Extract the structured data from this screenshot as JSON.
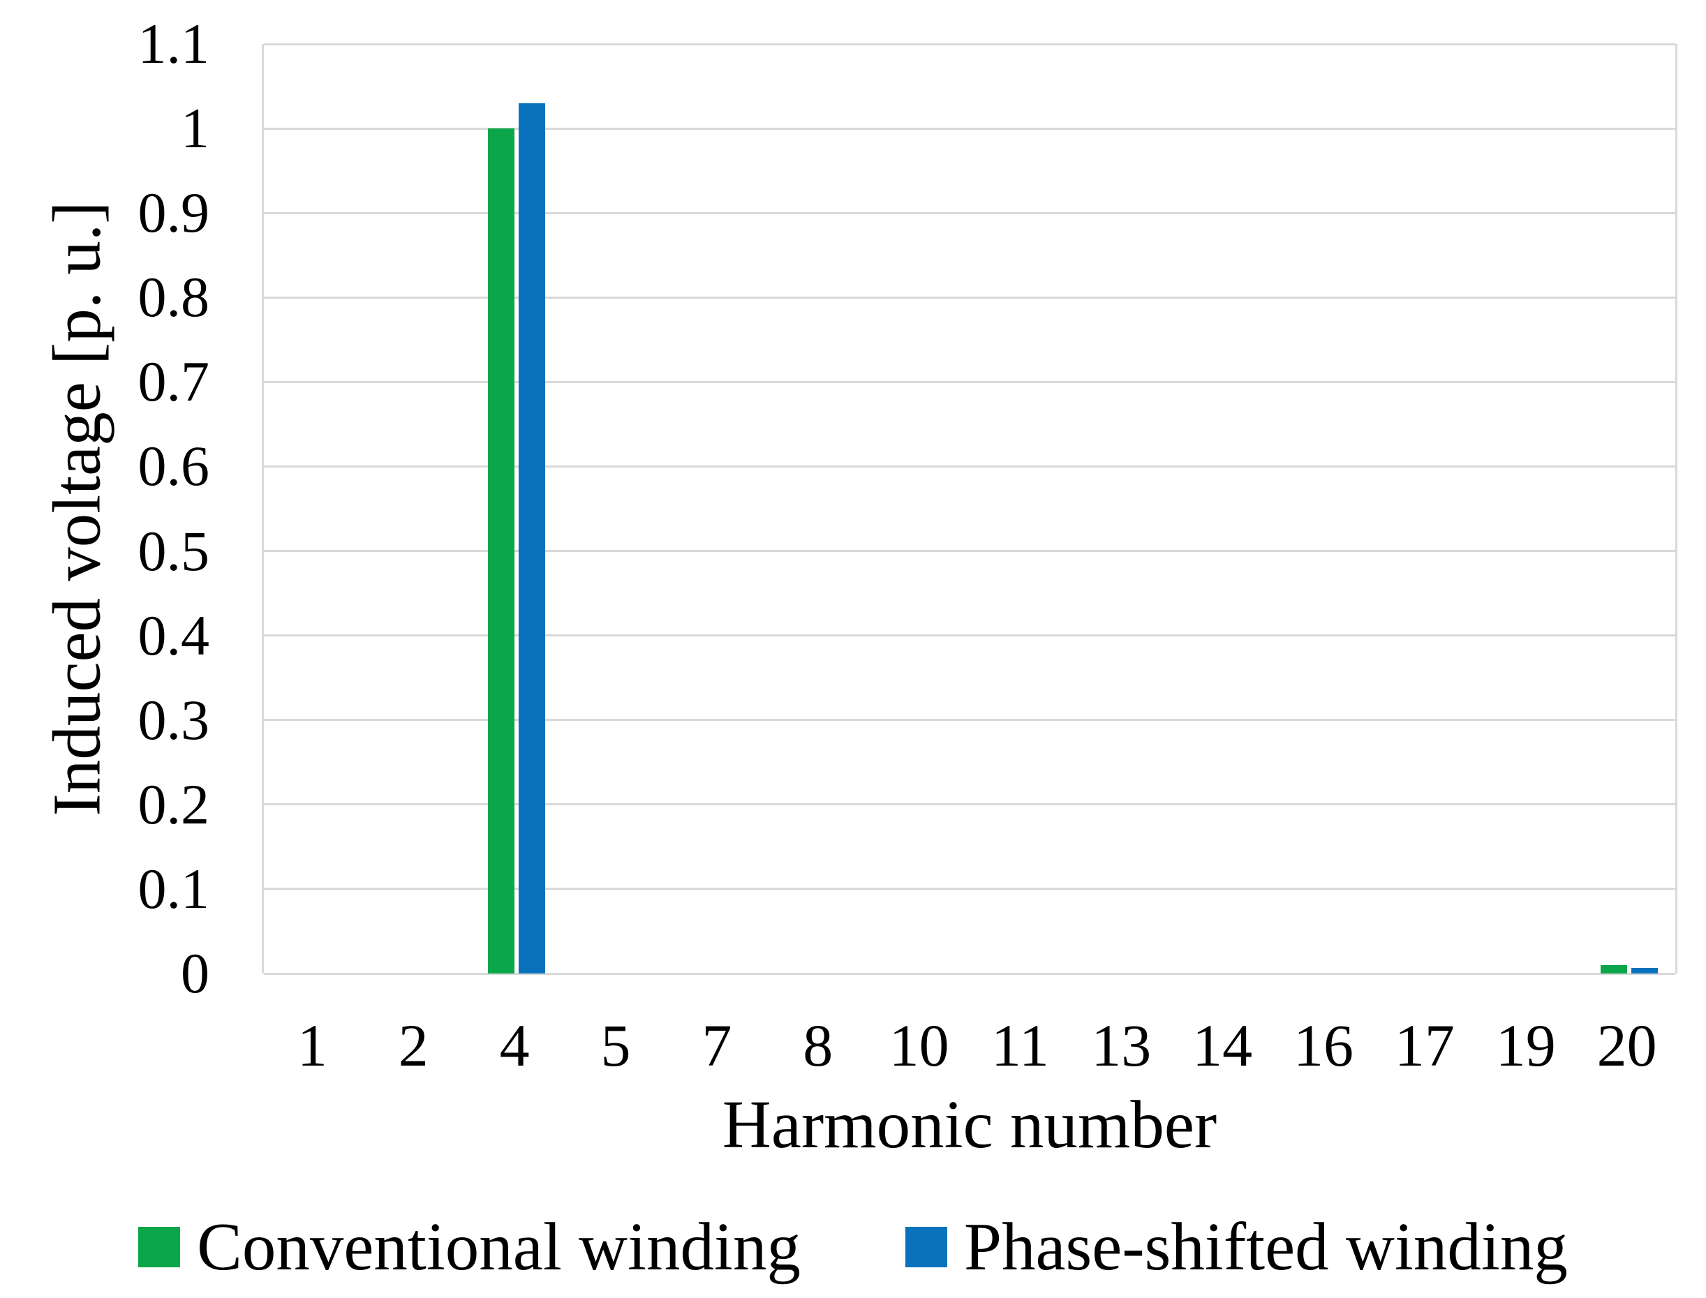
{
  "figure": {
    "y_axis_title": "Induced voltage [p. u.]",
    "x_axis_title": "Harmonic number"
  },
  "legend": {
    "items": [
      {
        "label": "Conventional winding",
        "color": "#0CA64A"
      },
      {
        "label": "Phase-shifted winding",
        "color": "#0A72BC"
      }
    ]
  },
  "chart_data": {
    "type": "bar",
    "categories": [
      "1",
      "2",
      "4",
      "5",
      "7",
      "8",
      "10",
      "11",
      "13",
      "14",
      "16",
      "17",
      "19",
      "20"
    ],
    "series": [
      {
        "name": "Conventional winding",
        "color": "#0CA64A",
        "values": [
          0,
          0,
          1.0,
          0,
          0,
          0,
          0,
          0,
          0,
          0,
          0,
          0,
          0,
          0.01
        ]
      },
      {
        "name": "Phase-shifted winding",
        "color": "#0A72BC",
        "values": [
          0,
          0,
          1.03,
          0,
          0,
          0,
          0,
          0,
          0,
          0,
          0,
          0,
          0,
          0.007
        ]
      }
    ],
    "title": "",
    "xlabel": "Harmonic number",
    "ylabel": "Induced voltage [p. u.]",
    "ylim": [
      0,
      1.1
    ],
    "ytick_step": 0.1,
    "ytick_labels": [
      "0",
      "0.1",
      "0.2",
      "0.3",
      "0.4",
      "0.5",
      "0.6",
      "0.7",
      "0.8",
      "0.9",
      "1",
      "1.1"
    ],
    "grid": "horizontal",
    "gridline_color": "#d9d9d9",
    "legend_position": "bottom"
  }
}
